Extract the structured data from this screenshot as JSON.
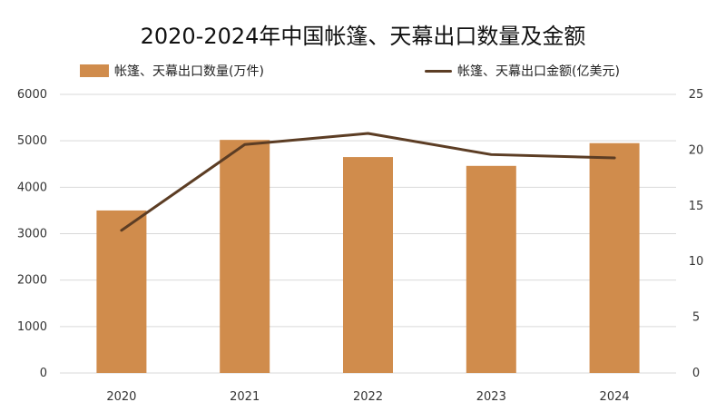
{
  "title": "2020-2024年中国帐篷、天幕出口数量及金额",
  "legend": {
    "bar_label": "帐篷、天幕出口数量(万件)",
    "line_label": "帐篷、天幕出口金额(亿美元)"
  },
  "colors": {
    "bar": "#D08C4C",
    "line": "#5C3D24",
    "grid": "#D9D9D9"
  },
  "chart_data": {
    "type": "bar+line",
    "categories": [
      "2020",
      "2021",
      "2022",
      "2023",
      "2024"
    ],
    "series": [
      {
        "name": "帐篷、天幕出口数量(万件)",
        "type": "bar",
        "axis": "left",
        "values": [
          3500,
          5020,
          4650,
          4460,
          4950
        ]
      },
      {
        "name": "帐篷、天幕出口金额(亿美元)",
        "type": "line",
        "axis": "right",
        "values": [
          12.8,
          20.5,
          21.5,
          19.6,
          19.3
        ]
      }
    ],
    "y_left": {
      "ticks": [
        0,
        1000,
        2000,
        3000,
        4000,
        5000,
        6000
      ],
      "ylim": [
        0,
        6000
      ]
    },
    "y_right": {
      "ticks": [
        0,
        5,
        10,
        15,
        20,
        25
      ],
      "ylim": [
        0,
        25
      ]
    },
    "grid": true,
    "legend_position": "top"
  }
}
